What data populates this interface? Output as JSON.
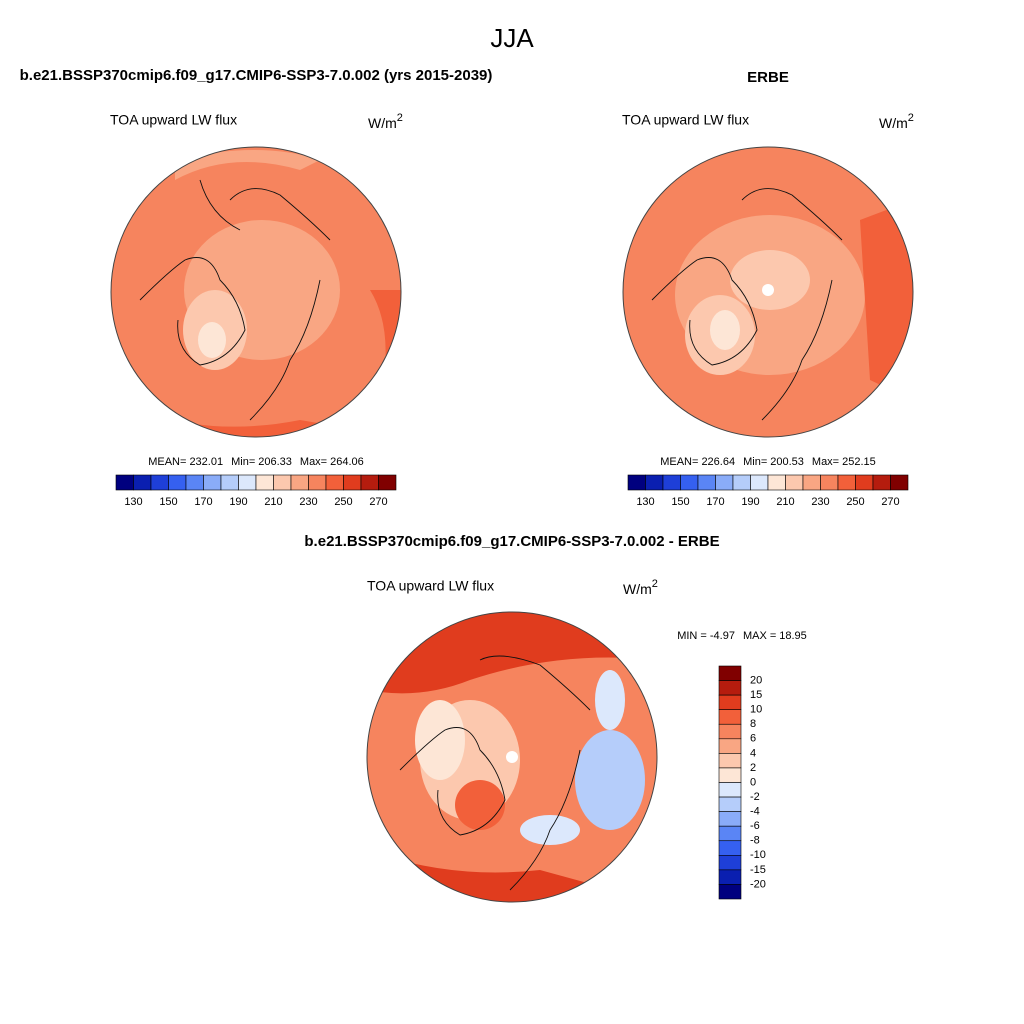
{
  "title": "JJA",
  "panels": [
    {
      "case": "b.e21.BSSP370cmip6.f09_g17.CMIP6-SSP3-7.0.002 (yrs 2015-2039)",
      "variable": "TOA upward LW flux",
      "units": "W/m",
      "units_power": "2",
      "stats": [
        {
          "label": "MEAN=",
          "value": 232.01
        },
        {
          "label": "Min=",
          "value": 206.33
        },
        {
          "label": "Max=",
          "value": 264.06
        }
      ]
    },
    {
      "case": "ERBE",
      "variable": "TOA upward LW flux",
      "units": "W/m",
      "units_power": "2",
      "stats": [
        {
          "label": "MEAN=",
          "value": 226.64
        },
        {
          "label": "Min=",
          "value": 200.53
        },
        {
          "label": "Max=",
          "value": 252.15
        }
      ]
    }
  ],
  "colorbar": {
    "labels": [
      130,
      150,
      170,
      190,
      210,
      230,
      250,
      270
    ],
    "colors": [
      "#00007f",
      "#0a1fb0",
      "#1e3fd8",
      "#3560f0",
      "#5a85f5",
      "#8aacf8",
      "#b5cdfa",
      "#dce8fc",
      "#fde6d6",
      "#fcc8ae",
      "#f9a683",
      "#f6845e",
      "#f2603a",
      "#e03c1e",
      "#b51c0e",
      "#800000"
    ]
  },
  "difference": {
    "case": "b.e21.BSSP370cmip6.f09_g17.CMIP6-SSP3-7.0.002 - ERBE",
    "variable": "TOA upward LW flux",
    "units": "W/m",
    "units_power": "2",
    "stats": [
      {
        "label": "MIN =",
        "value": -4.97
      },
      {
        "label": "MAX =",
        "value": 18.95
      }
    ],
    "colorbar": {
      "labels": [
        20,
        15,
        10,
        8,
        6,
        4,
        2,
        0,
        -2,
        -4,
        -6,
        -8,
        -10,
        -15,
        -20
      ],
      "colors": [
        "#800000",
        "#b51c0e",
        "#e03c1e",
        "#f2603a",
        "#f6845e",
        "#f9a683",
        "#fcc8ae",
        "#fde6d6",
        "#dce8fc",
        "#b5cdfa",
        "#8aacf8",
        "#5a85f5",
        "#3560f0",
        "#1e3fd8",
        "#0a1fb0",
        "#00007f"
      ]
    }
  }
}
